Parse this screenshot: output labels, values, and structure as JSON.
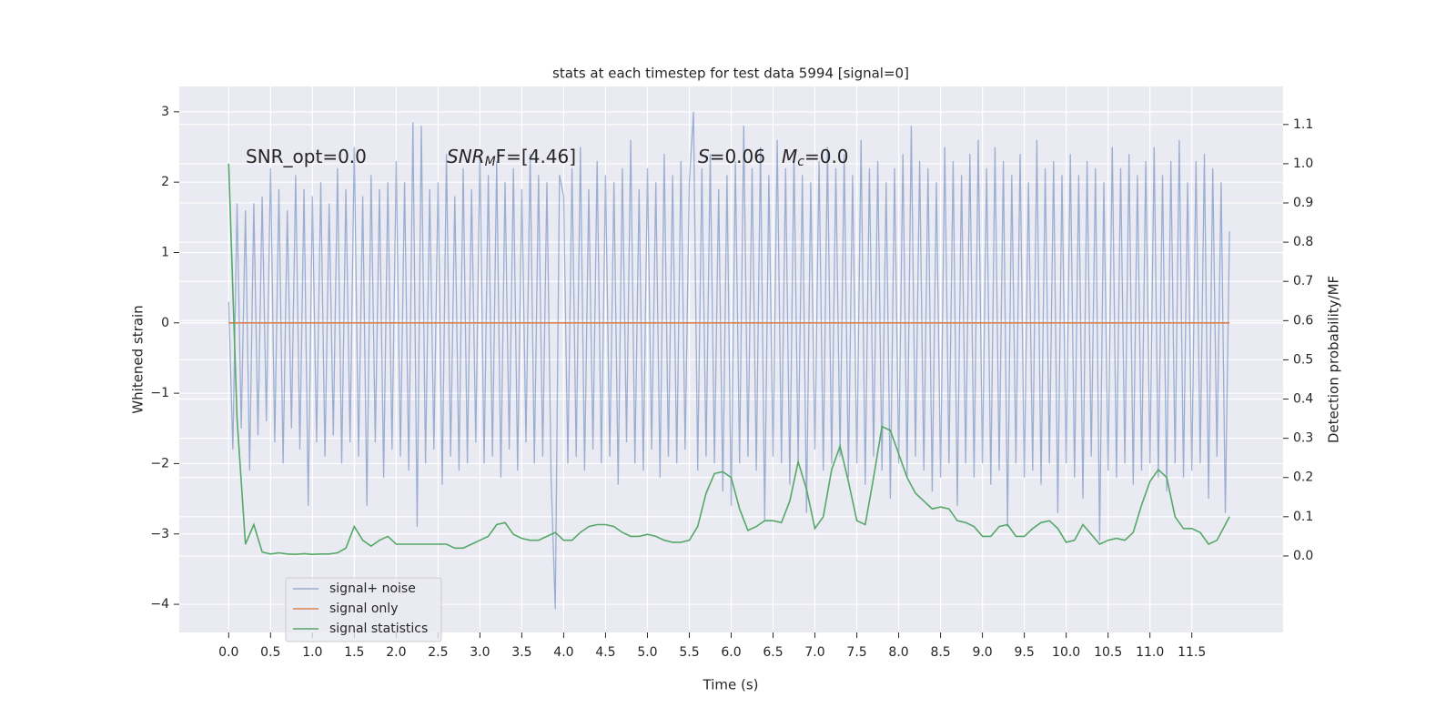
{
  "chart_data": {
    "type": "line",
    "title": "stats at each timestep for test data 5994 [signal=0]",
    "x_label": "Time (s)",
    "y_label": "Whitened strain",
    "y2_label": "Detection probability/MF",
    "annotations": [
      {
        "text": "SNR_opt=0.0"
      },
      {
        "math": "SNR",
        "sub": "M",
        "text": "F=[4.46]"
      },
      {
        "math": "S",
        "text": "=0.06"
      },
      {
        "math": "M",
        "sub": "c",
        "text": "=0.0"
      }
    ],
    "xlim": [
      -0.59,
      12.59
    ],
    "ylim": [
      -4.4,
      3.36
    ],
    "y2lim": [
      -0.195,
      1.197
    ],
    "xticks": [
      {
        "value": 0,
        "label": "0.0"
      },
      {
        "value": 0.5,
        "label": "0.5"
      },
      {
        "value": 1,
        "label": "1.0"
      },
      {
        "value": 1.5,
        "label": "1.5"
      },
      {
        "value": 2,
        "label": "2.0"
      },
      {
        "value": 2.5,
        "label": "2.5"
      },
      {
        "value": 3,
        "label": "3.0"
      },
      {
        "value": 3.5,
        "label": "3.5"
      },
      {
        "value": 4,
        "label": "4.0"
      },
      {
        "value": 4.5,
        "label": "4.5"
      },
      {
        "value": 5,
        "label": "5.0"
      },
      {
        "value": 5.5,
        "label": "5.5"
      },
      {
        "value": 6,
        "label": "6.0"
      },
      {
        "value": 6.5,
        "label": "6.5"
      },
      {
        "value": 7,
        "label": "7.0"
      },
      {
        "value": 7.5,
        "label": "7.5"
      },
      {
        "value": 8,
        "label": "8.0"
      },
      {
        "value": 8.5,
        "label": "8.5"
      },
      {
        "value": 9,
        "label": "9.0"
      },
      {
        "value": 9.5,
        "label": "9.5"
      },
      {
        "value": 10,
        "label": "10.0"
      },
      {
        "value": 10.5,
        "label": "10.5"
      },
      {
        "value": 11,
        "label": "11.0"
      },
      {
        "value": 11.5,
        "label": "11.5"
      }
    ],
    "yticks": [
      {
        "value": -4,
        "label": "−4"
      },
      {
        "value": -3,
        "label": "−3"
      },
      {
        "value": -2,
        "label": "−2"
      },
      {
        "value": -1,
        "label": "−1"
      },
      0,
      1,
      2,
      3
    ],
    "y2ticks": [
      {
        "value": 0,
        "label": "0.0"
      },
      {
        "value": 0.1,
        "label": "0.1"
      },
      {
        "value": 0.2,
        "label": "0.2"
      },
      {
        "value": 0.3,
        "label": "0.3"
      },
      {
        "value": 0.4,
        "label": "0.4"
      },
      {
        "value": 0.5,
        "label": "0.5"
      },
      {
        "value": 0.6,
        "label": "0.6"
      },
      {
        "value": 0.7,
        "label": "0.7"
      },
      {
        "value": 0.8,
        "label": "0.8"
      },
      {
        "value": 0.9,
        "label": "0.9"
      },
      {
        "value": 1,
        "label": "1.0"
      },
      {
        "value": 1.1,
        "label": "1.1"
      }
    ],
    "grid": true,
    "legend": "lower left",
    "series": [
      {
        "name": "signal+ noise",
        "color": "#4c72b0",
        "opacity": 0.5,
        "x": [
          0,
          0.05,
          0.1,
          0.15,
          0.2,
          0.25,
          0.3,
          0.35,
          0.4,
          0.45,
          0.5,
          0.55,
          0.6,
          0.65,
          0.7,
          0.75,
          0.8,
          0.85,
          0.9,
          0.95,
          1,
          1.05,
          1.1,
          1.15,
          1.2,
          1.25,
          1.3,
          1.35,
          1.4,
          1.45,
          1.5,
          1.55,
          1.6,
          1.65,
          1.7,
          1.75,
          1.8,
          1.85,
          1.9,
          1.95,
          2,
          2.05,
          2.1,
          2.15,
          2.2,
          2.25,
          2.3,
          2.35,
          2.4,
          2.45,
          2.5,
          2.55,
          2.6,
          2.65,
          2.7,
          2.75,
          2.8,
          2.85,
          2.9,
          2.95,
          3,
          3.05,
          3.1,
          3.15,
          3.2,
          3.25,
          3.3,
          3.35,
          3.4,
          3.45,
          3.5,
          3.55,
          3.6,
          3.65,
          3.7,
          3.75,
          3.8,
          3.85,
          3.9,
          3.95,
          4,
          4.05,
          4.1,
          4.15,
          4.2,
          4.25,
          4.3,
          4.35,
          4.4,
          4.45,
          4.5,
          4.55,
          4.6,
          4.65,
          4.7,
          4.75,
          4.8,
          4.85,
          4.9,
          4.95,
          5,
          5.05,
          5.1,
          5.15,
          5.2,
          5.25,
          5.3,
          5.35,
          5.4,
          5.45,
          5.5,
          5.55,
          5.6,
          5.65,
          5.7,
          5.75,
          5.8,
          5.85,
          5.9,
          5.95,
          6,
          6.05,
          6.1,
          6.15,
          6.2,
          6.25,
          6.3,
          6.35,
          6.4,
          6.45,
          6.5,
          6.55,
          6.6,
          6.65,
          6.7,
          6.75,
          6.8,
          6.85,
          6.9,
          6.95,
          7,
          7.05,
          7.1,
          7.15,
          7.2,
          7.25,
          7.3,
          7.35,
          7.4,
          7.45,
          7.5,
          7.55,
          7.6,
          7.65,
          7.7,
          7.75,
          7.8,
          7.85,
          7.9,
          7.95,
          8,
          8.05,
          8.1,
          8.15,
          8.2,
          8.25,
          8.3,
          8.35,
          8.4,
          8.45,
          8.5,
          8.55,
          8.6,
          8.65,
          8.7,
          8.75,
          8.8,
          8.85,
          8.9,
          8.95,
          9,
          9.05,
          9.1,
          9.15,
          9.2,
          9.25,
          9.3,
          9.35,
          9.4,
          9.45,
          9.5,
          9.55,
          9.6,
          9.65,
          9.7,
          9.75,
          9.8,
          9.85,
          9.9,
          9.95,
          10,
          10.05,
          10.1,
          10.15,
          10.2,
          10.25,
          10.3,
          10.35,
          10.4,
          10.45,
          10.5,
          10.55,
          10.6,
          10.65,
          10.7,
          10.75,
          10.8,
          10.85,
          10.9,
          10.95,
          11,
          11.05,
          11.1,
          11.15,
          11.2,
          11.25,
          11.3,
          11.35,
          11.4,
          11.45,
          11.5,
          11.55,
          11.6,
          11.65,
          11.7,
          11.75,
          11.8,
          11.85,
          11.9,
          11.95
        ],
        "values": [
          0.3,
          -1.8,
          1.7,
          -1.5,
          1.6,
          -2.1,
          1.7,
          -1.6,
          1.8,
          -1.4,
          2.2,
          -1.7,
          1.9,
          -2.0,
          1.6,
          -1.5,
          2.1,
          -1.8,
          1.9,
          -2.6,
          1.8,
          -1.7,
          2.0,
          -1.9,
          1.7,
          -1.6,
          2.2,
          -2.0,
          1.9,
          -1.7,
          2.5,
          -1.9,
          1.8,
          -2.6,
          2.1,
          -1.7,
          1.9,
          -2.2,
          2.0,
          -1.8,
          2.3,
          -1.9,
          2.0,
          -2.1,
          2.85,
          -2.9,
          2.8,
          -2.0,
          1.9,
          -1.8,
          2.0,
          -2.3,
          2.4,
          -1.9,
          1.8,
          -2.1,
          2.2,
          -2.0,
          1.9,
          -1.7,
          2.4,
          -2.0,
          2.1,
          -1.9,
          2.3,
          -2.2,
          2.0,
          -1.8,
          2.2,
          -2.1,
          1.9,
          -1.7,
          2.4,
          -2.0,
          2.1,
          -1.9,
          2.0,
          -2.2,
          -4.07,
          2.1,
          1.8,
          -2.0,
          2.2,
          -1.9,
          2.5,
          -2.1,
          1.9,
          -1.8,
          2.3,
          -2.0,
          2.1,
          -1.9,
          2.0,
          -2.3,
          2.2,
          -1.7,
          2.6,
          -2.0,
          1.9,
          -2.1,
          2.2,
          -1.8,
          2.0,
          -2.2,
          2.4,
          -1.9,
          2.1,
          -2.0,
          2.3,
          -1.8,
          2.0,
          3.0,
          -2.1,
          2.2,
          -1.9,
          2.4,
          -2.0,
          1.9,
          -2.4,
          2.1,
          -2.6,
          2.3,
          -2.0,
          2.8,
          -1.9,
          2.2,
          -2.1,
          2.5,
          -2.8,
          2.1,
          -1.9,
          2.6,
          -2.0,
          2.2,
          -2.3,
          2.4,
          -2.0,
          2.1,
          -2.7,
          2.0,
          -1.8,
          2.3,
          -2.1,
          2.5,
          -2.0,
          2.2,
          -1.9,
          2.4,
          -2.2,
          2.1,
          -2.0,
          2.6,
          -2.3,
          2.2,
          -1.9,
          2.3,
          -2.1,
          2.0,
          -2.5,
          2.2,
          -2.0,
          2.4,
          -2.2,
          2.8,
          -1.9,
          2.3,
          -2.1,
          2.2,
          -2.4,
          2.0,
          -2.2,
          2.5,
          -2.0,
          2.3,
          -2.6,
          2.1,
          -2.0,
          2.4,
          -2.2,
          2.6,
          -2.0,
          2.2,
          -2.3,
          2.5,
          -2.1,
          2.3,
          -2.9,
          2.1,
          -2.0,
          2.4,
          -2.2,
          2.0,
          -2.1,
          2.6,
          -2.3,
          2.2,
          -2.0,
          2.3,
          -2.7,
          2.1,
          -2.0,
          2.4,
          -2.2,
          2.1,
          -2.5,
          2.3,
          -1.9,
          2.2,
          -3.1,
          2.0,
          -2.1,
          2.5,
          -2.2,
          2.2,
          -2.0,
          2.4,
          -2.3,
          2.1,
          -2.1,
          2.3,
          -2.0,
          2.5,
          -2.2,
          2.1,
          -2.4,
          2.3,
          -2.0,
          2.6,
          -2.2,
          2.0,
          -2.1,
          2.3,
          -2.0,
          2.4,
          -2.5,
          2.2,
          -1.9,
          2.0,
          -2.7,
          1.3
        ]
      },
      {
        "name": "signal only",
        "color": "#dd8452",
        "opacity": 1,
        "x": [
          0,
          11.95
        ],
        "values": [
          0,
          0
        ]
      },
      {
        "name": "signal statistics",
        "color": "#55a868",
        "opacity": 1,
        "axis": "y2",
        "x": [
          0,
          0.1,
          0.2,
          0.3,
          0.4,
          0.5,
          0.6,
          0.7,
          0.8,
          0.9,
          1,
          1.1,
          1.2,
          1.3,
          1.4,
          1.5,
          1.6,
          1.7,
          1.8,
          1.9,
          2,
          2.1,
          2.2,
          2.3,
          2.4,
          2.5,
          2.6,
          2.7,
          2.8,
          2.9,
          3,
          3.1,
          3.2,
          3.3,
          3.4,
          3.5,
          3.6,
          3.7,
          3.8,
          3.9,
          4,
          4.1,
          4.2,
          4.3,
          4.4,
          4.5,
          4.6,
          4.7,
          4.8,
          4.9,
          5,
          5.1,
          5.2,
          5.3,
          5.4,
          5.5,
          5.6,
          5.7,
          5.8,
          5.9,
          6,
          6.1,
          6.2,
          6.3,
          6.4,
          6.5,
          6.6,
          6.7,
          6.8,
          6.9,
          7,
          7.1,
          7.2,
          7.3,
          7.4,
          7.5,
          7.6,
          7.7,
          7.8,
          7.9,
          8,
          8.1,
          8.2,
          8.3,
          8.4,
          8.5,
          8.6,
          8.7,
          8.8,
          8.9,
          9,
          9.1,
          9.2,
          9.3,
          9.4,
          9.5,
          9.6,
          9.7,
          9.8,
          9.9,
          10,
          10.1,
          10.2,
          10.3,
          10.4,
          10.5,
          10.6,
          10.7,
          10.8,
          10.9,
          11,
          11.1,
          11.2,
          11.3,
          11.4,
          11.5,
          11.6,
          11.7,
          11.8,
          11.9,
          11.95
        ],
        "values": [
          1.0,
          0.35,
          0.03,
          0.08,
          0.01,
          0.005,
          0.008,
          0.005,
          0.004,
          0.006,
          0.004,
          0.005,
          0.005,
          0.008,
          0.02,
          0.075,
          0.04,
          0.025,
          0.04,
          0.05,
          0.03,
          0.03,
          0.03,
          0.03,
          0.03,
          0.03,
          0.03,
          0.02,
          0.02,
          0.03,
          0.04,
          0.05,
          0.08,
          0.085,
          0.055,
          0.045,
          0.04,
          0.04,
          0.05,
          0.06,
          0.04,
          0.04,
          0.06,
          0.075,
          0.08,
          0.08,
          0.075,
          0.06,
          0.05,
          0.05,
          0.055,
          0.05,
          0.04,
          0.035,
          0.035,
          0.04,
          0.075,
          0.16,
          0.21,
          0.215,
          0.2,
          0.12,
          0.065,
          0.075,
          0.09,
          0.09,
          0.085,
          0.14,
          0.24,
          0.17,
          0.07,
          0.1,
          0.22,
          0.28,
          0.19,
          0.09,
          0.08,
          0.2,
          0.33,
          0.32,
          0.26,
          0.2,
          0.16,
          0.14,
          0.12,
          0.125,
          0.12,
          0.09,
          0.085,
          0.075,
          0.05,
          0.05,
          0.075,
          0.08,
          0.05,
          0.05,
          0.07,
          0.085,
          0.09,
          0.07,
          0.035,
          0.04,
          0.08,
          0.055,
          0.03,
          0.04,
          0.045,
          0.04,
          0.06,
          0.13,
          0.19,
          0.22,
          0.2,
          0.1,
          0.07,
          0.07,
          0.06,
          0.03,
          0.04,
          0.08,
          0.1
        ]
      }
    ]
  }
}
